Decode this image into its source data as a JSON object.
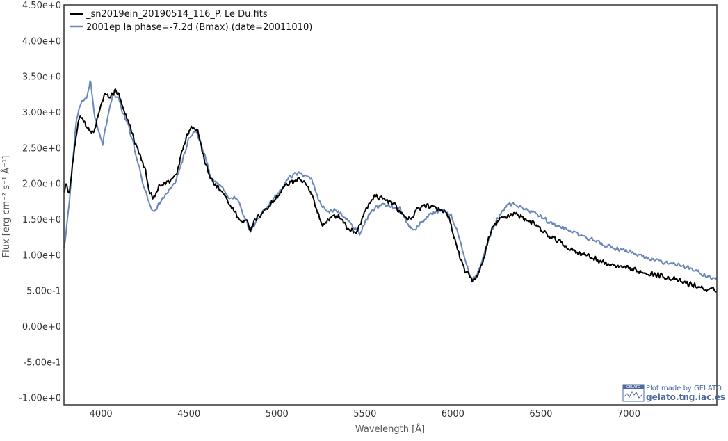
{
  "chart_data": {
    "type": "line",
    "xlabel": "Wavelength [Å]",
    "ylabel": "Flux [erg cm⁻² s⁻¹ Å⁻¹]",
    "xlim": [
      3790,
      7500
    ],
    "ylim": [
      -1.1,
      4.5
    ],
    "x_ticks": [
      4000,
      4500,
      5000,
      5500,
      6000,
      6500,
      7000
    ],
    "y_ticks": [
      -1.0,
      -0.5,
      0.0,
      0.5,
      1.0,
      1.5,
      2.0,
      2.5,
      3.0,
      3.5,
      4.0,
      4.5
    ],
    "y_tick_labels": [
      "-1.00e+0",
      "-5.00e-1",
      "0.00e+0",
      "5.00e-1",
      "1.00e+0",
      "1.50e+0",
      "2.00e+0",
      "2.50e+0",
      "3.00e+0",
      "3.50e+0",
      "4.00e+0",
      "4.50e+0"
    ],
    "grid": false,
    "legend_position": "top-left",
    "series": [
      {
        "name": "_sn2019ein_20190514_116_P. Le Du.fits",
        "color": "#000000",
        "noise": 0.045,
        "x": [
          3790,
          3800,
          3820,
          3850,
          3880,
          3900,
          3930,
          3960,
          3990,
          4020,
          4050,
          4080,
          4100,
          4130,
          4160,
          4190,
          4220,
          4250,
          4280,
          4300,
          4330,
          4360,
          4400,
          4430,
          4460,
          4490,
          4520,
          4550,
          4580,
          4610,
          4640,
          4680,
          4720,
          4760,
          4800,
          4830,
          4850,
          4880,
          4920,
          4960,
          5000,
          5040,
          5080,
          5120,
          5160,
          5200,
          5230,
          5260,
          5300,
          5350,
          5400,
          5450,
          5500,
          5530,
          5560,
          5600,
          5650,
          5700,
          5730,
          5760,
          5800,
          5850,
          5900,
          5950,
          5980,
          6000,
          6030,
          6060,
          6090,
          6110,
          6140,
          6170,
          6200,
          6230,
          6270,
          6310,
          6350,
          6400,
          6450,
          6500,
          6550,
          6600,
          6650,
          6700,
          6800,
          6900,
          7000,
          7100,
          7200,
          7300,
          7400,
          7450,
          7500
        ],
        "y": [
          1.9,
          2.0,
          1.85,
          2.5,
          2.95,
          2.9,
          2.75,
          2.7,
          3.0,
          3.25,
          3.2,
          3.3,
          3.25,
          3.0,
          2.85,
          2.6,
          2.4,
          2.2,
          1.85,
          1.78,
          1.95,
          2.0,
          2.05,
          2.15,
          2.45,
          2.7,
          2.8,
          2.75,
          2.4,
          2.15,
          2.0,
          1.9,
          1.75,
          1.6,
          1.45,
          1.5,
          1.35,
          1.5,
          1.6,
          1.7,
          1.8,
          1.95,
          2.02,
          2.05,
          2.0,
          1.85,
          1.6,
          1.4,
          1.52,
          1.55,
          1.38,
          1.3,
          1.6,
          1.75,
          1.82,
          1.78,
          1.75,
          1.6,
          1.52,
          1.5,
          1.65,
          1.7,
          1.65,
          1.6,
          1.5,
          1.3,
          1.05,
          0.82,
          0.7,
          0.65,
          0.7,
          0.9,
          1.2,
          1.4,
          1.5,
          1.55,
          1.58,
          1.52,
          1.45,
          1.35,
          1.25,
          1.2,
          1.1,
          1.05,
          0.95,
          0.85,
          0.8,
          0.75,
          0.7,
          0.62,
          0.55,
          0.5,
          0.52
        ]
      },
      {
        "name": "2001ep  Ia  phase=-7.2d (Bmax)  (date=20011010)",
        "color": "#6a87b8",
        "noise": 0.035,
        "x": [
          3790,
          3800,
          3830,
          3860,
          3890,
          3920,
          3940,
          3960,
          3990,
          4010,
          4040,
          4070,
          4100,
          4120,
          4150,
          4180,
          4210,
          4240,
          4270,
          4300,
          4340,
          4380,
          4420,
          4460,
          4500,
          4540,
          4570,
          4600,
          4630,
          4680,
          4730,
          4780,
          4820,
          4850,
          4880,
          4920,
          4970,
          5020,
          5070,
          5120,
          5160,
          5200,
          5240,
          5280,
          5330,
          5380,
          5430,
          5470,
          5520,
          5560,
          5600,
          5650,
          5700,
          5740,
          5780,
          5820,
          5860,
          5900,
          5950,
          5990,
          6030,
          6060,
          6090,
          6110,
          6140,
          6170,
          6200,
          6240,
          6280,
          6320,
          6360,
          6400,
          6450,
          6500,
          6550,
          6600,
          6700,
          6800,
          6900,
          7000,
          7100,
          7200,
          7300,
          7400,
          7450,
          7500
        ],
        "y": [
          1.1,
          1.25,
          2.0,
          2.9,
          3.15,
          3.2,
          3.45,
          3.0,
          2.7,
          2.55,
          2.95,
          3.25,
          3.2,
          3.0,
          2.85,
          2.6,
          2.3,
          2.0,
          1.75,
          1.58,
          1.75,
          1.9,
          2.0,
          2.3,
          2.65,
          2.75,
          2.55,
          2.3,
          2.05,
          1.98,
          1.8,
          1.78,
          1.5,
          1.32,
          1.45,
          1.6,
          1.75,
          1.9,
          2.1,
          2.15,
          2.1,
          2.05,
          1.75,
          1.6,
          1.62,
          1.55,
          1.4,
          1.3,
          1.55,
          1.65,
          1.7,
          1.68,
          1.65,
          1.42,
          1.35,
          1.45,
          1.55,
          1.6,
          1.62,
          1.55,
          1.3,
          1.0,
          0.75,
          0.65,
          0.72,
          0.95,
          1.2,
          1.45,
          1.6,
          1.72,
          1.7,
          1.65,
          1.6,
          1.55,
          1.45,
          1.4,
          1.3,
          1.2,
          1.1,
          1.05,
          0.95,
          0.9,
          0.85,
          0.75,
          0.7,
          0.65
        ]
      }
    ]
  },
  "watermark": {
    "logo_text": "GELATO",
    "line1": "Plot made by GELATO",
    "line2": "gelato.tng.iac.es"
  }
}
